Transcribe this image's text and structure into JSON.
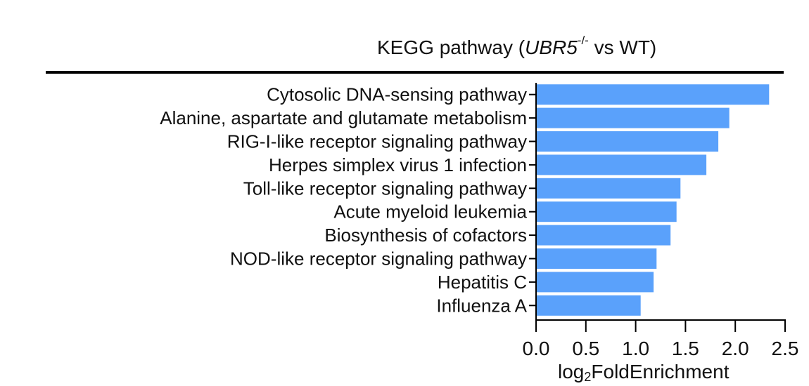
{
  "chart_data": {
    "type": "bar",
    "orientation": "horizontal",
    "title": {
      "prefix": "KEGG pathway (",
      "gene": "UBR5",
      "superscript": "-/-",
      "suffix": " vs WT)"
    },
    "xlabel": {
      "base": "log",
      "subscript": "2",
      "rest": "FoldEnrichment"
    },
    "ylabel": "",
    "xlim": [
      0,
      2.5
    ],
    "xticks": [
      "0.0",
      "0.5",
      "1.0",
      "1.5",
      "2.0",
      "2.5"
    ],
    "xtick_values": [
      0,
      0.5,
      1.0,
      1.5,
      2.0,
      2.5
    ],
    "categories": [
      "Cytosolic DNA-sensing pathway",
      "Alanine, aspartate and glutamate metabolism",
      "RIG-I-like receptor signaling pathway",
      "Herpes simplex virus 1 infection",
      "Toll-like receptor signaling pathway",
      "Acute myeloid leukemia",
      "Biosynthesis of cofactors",
      "NOD-like receptor signaling pathway",
      "Hepatitis C",
      "Influenza A"
    ],
    "values": [
      2.34,
      1.94,
      1.83,
      1.71,
      1.45,
      1.41,
      1.35,
      1.21,
      1.18,
      1.05
    ],
    "bar_color": "#5aa1fb",
    "grid": false,
    "legend": "none"
  }
}
